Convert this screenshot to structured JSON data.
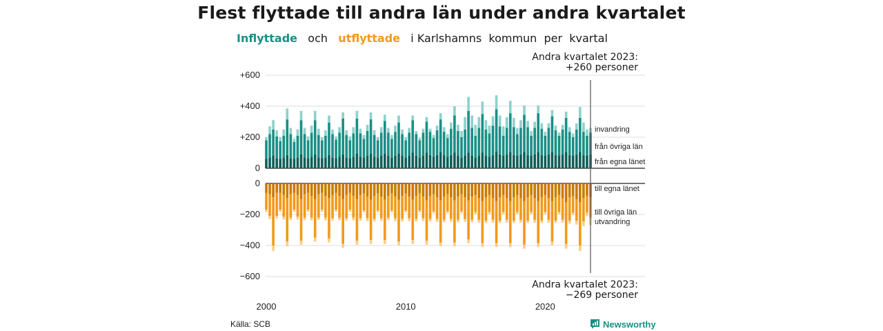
{
  "title": "Flest flyttade till andra län under andra kvartalet",
  "subtitle": {
    "in_label": "Inflyttade",
    "and_word": "och",
    "out_label": "utflyttade",
    "rest": "i Karlshamns  kommun  per  kvartal"
  },
  "annotations": {
    "top": "Andra kvartalet 2023:\n+260 personer",
    "bottom": "Andra kvartalet 2023:\n−269 personer"
  },
  "source": "Källa: SCB",
  "brand": {
    "name": "Newsworthy",
    "icon": "newsworthy-logo-icon"
  },
  "colors": {
    "in_own_county": "#0e5e58",
    "in_other_counties": "#1a8f86",
    "in_immigration": "#8fd1cb",
    "out_own_county": "#c97a00",
    "out_other_counties": "#f29a1a",
    "out_emigration": "#f8cf8a",
    "grid": "#dddddd",
    "marker": "#555555"
  },
  "chart_data": {
    "type": "bar",
    "stacked": true,
    "x_start": "2000 Q1",
    "x_end": "2023 Q2",
    "x_ticks": [
      "2000",
      "2010",
      "2020"
    ],
    "ylim": [
      -600,
      600
    ],
    "yticks": [
      "+600",
      "+400",
      "+200",
      "0",
      "−200",
      "−400",
      "−600"
    ],
    "grid": true,
    "series": [
      {
        "name": "från egna länet",
        "side": "in",
        "values": [
          60,
          70,
          80,
          65,
          60,
          70,
          85,
          65,
          60,
          70,
          90,
          70,
          65,
          75,
          90,
          70,
          65,
          70,
          85,
          70,
          65,
          75,
          90,
          70,
          65,
          75,
          95,
          75,
          70,
          80,
          95,
          75,
          70,
          80,
          95,
          80,
          70,
          80,
          95,
          80,
          70,
          80,
          100,
          80,
          70,
          80,
          100,
          85,
          75,
          85,
          105,
          85,
          75,
          85,
          100,
          80,
          70,
          80,
          100,
          80,
          70,
          80,
          100,
          80,
          75,
          85,
          110,
          90,
          80,
          90,
          105,
          85,
          80,
          90,
          105,
          85,
          80,
          90,
          105,
          85,
          80,
          90,
          105,
          85,
          80,
          90,
          105,
          85,
          80,
          90,
          105,
          85,
          80,
          90
        ]
      },
      {
        "name": "från övriga län",
        "side": "in",
        "values": [
          120,
          150,
          170,
          140,
          115,
          140,
          230,
          155,
          110,
          140,
          220,
          150,
          115,
          155,
          220,
          145,
          115,
          140,
          210,
          150,
          120,
          155,
          230,
          145,
          115,
          150,
          225,
          150,
          120,
          160,
          220,
          140,
          110,
          150,
          210,
          150,
          120,
          155,
          200,
          140,
          110,
          150,
          210,
          140,
          110,
          150,
          200,
          150,
          120,
          160,
          210,
          150,
          120,
          170,
          240,
          160,
          130,
          170,
          270,
          180,
          140,
          180,
          250,
          170,
          150,
          190,
          270,
          180,
          130,
          170,
          250,
          180,
          140,
          170,
          240,
          180,
          130,
          170,
          250,
          170,
          130,
          170,
          230,
          160,
          130,
          160,
          220,
          150,
          120,
          160,
          220,
          150,
          130,
          140
        ]
      },
      {
        "name": "invandring",
        "side": "in",
        "values": [
          20,
          50,
          60,
          40,
          25,
          40,
          70,
          40,
          20,
          40,
          60,
          40,
          25,
          45,
          60,
          40,
          20,
          35,
          45,
          30,
          20,
          35,
          40,
          30,
          25,
          40,
          50,
          30,
          25,
          40,
          45,
          30,
          20,
          35,
          40,
          30,
          25,
          40,
          45,
          30,
          20,
          30,
          30,
          20,
          15,
          25,
          30,
          20,
          20,
          30,
          40,
          30,
          25,
          40,
          60,
          40,
          40,
          80,
          90,
          80,
          70,
          70,
          80,
          60,
          50,
          60,
          90,
          70,
          60,
          70,
          80,
          60,
          40,
          50,
          60,
          40,
          30,
          40,
          50,
          35,
          25,
          30,
          40,
          30,
          20,
          30,
          40,
          30,
          25,
          40,
          70,
          60,
          40,
          30
        ]
      },
      {
        "name": "till egna länet",
        "side": "out",
        "values": [
          -60,
          -70,
          -90,
          -60,
          -60,
          -75,
          -95,
          -70,
          -60,
          -75,
          -100,
          -70,
          -60,
          -80,
          -100,
          -70,
          -60,
          -80,
          -95,
          -75,
          -60,
          -80,
          -100,
          -75,
          -60,
          -80,
          -100,
          -75,
          -65,
          -85,
          -105,
          -80,
          -65,
          -85,
          -105,
          -80,
          -65,
          -85,
          -105,
          -80,
          -65,
          -85,
          -105,
          -80,
          -65,
          -85,
          -110,
          -80,
          -70,
          -90,
          -110,
          -85,
          -70,
          -90,
          -110,
          -85,
          -70,
          -90,
          -110,
          -85,
          -75,
          -95,
          -115,
          -90,
          -75,
          -95,
          -115,
          -90,
          -75,
          -95,
          -115,
          -90,
          -75,
          -95,
          -115,
          -90,
          -75,
          -95,
          -115,
          -90,
          -75,
          -95,
          -115,
          -90,
          -75,
          -95,
          -120,
          -90,
          -80,
          -100,
          -120,
          -95,
          -80,
          -90
        ]
      },
      {
        "name": "till övriga län",
        "side": "out",
        "values": [
          -110,
          -140,
          -310,
          -150,
          -110,
          -140,
          -280,
          -150,
          -110,
          -140,
          -270,
          -150,
          -110,
          -140,
          -250,
          -150,
          -110,
          -140,
          -260,
          -150,
          -110,
          -140,
          -290,
          -150,
          -110,
          -140,
          -270,
          -150,
          -110,
          -140,
          -260,
          -150,
          -110,
          -140,
          -260,
          -140,
          -110,
          -140,
          -270,
          -150,
          -110,
          -140,
          -260,
          -150,
          -110,
          -140,
          -260,
          -150,
          -110,
          -140,
          -270,
          -150,
          -110,
          -140,
          -270,
          -150,
          -110,
          -140,
          -250,
          -150,
          -110,
          -140,
          -270,
          -150,
          -110,
          -140,
          -270,
          -150,
          -110,
          -140,
          -270,
          -150,
          -110,
          -140,
          -280,
          -150,
          -110,
          -140,
          -270,
          -150,
          -110,
          -140,
          -260,
          -150,
          -110,
          -140,
          -270,
          -150,
          -110,
          -140,
          -280,
          -150,
          -110,
          -130
        ]
      },
      {
        "name": "utvandring",
        "side": "out",
        "values": [
          -15,
          -20,
          -35,
          -15,
          -12,
          -18,
          -30,
          -15,
          -12,
          -18,
          -25,
          -15,
          -12,
          -18,
          -25,
          -15,
          -12,
          -18,
          -25,
          -15,
          -12,
          -18,
          -25,
          -15,
          -12,
          -18,
          -25,
          -15,
          -12,
          -18,
          -25,
          -15,
          -12,
          -18,
          -25,
          -15,
          -12,
          -18,
          -25,
          -15,
          -12,
          -18,
          -25,
          -15,
          -12,
          -18,
          -25,
          -15,
          -12,
          -18,
          -25,
          -15,
          -12,
          -18,
          -25,
          -15,
          -12,
          -18,
          -25,
          -15,
          -12,
          -18,
          -25,
          -15,
          -12,
          -18,
          -25,
          -15,
          -12,
          -18,
          -25,
          -15,
          -12,
          -18,
          -25,
          -15,
          -12,
          -18,
          -25,
          -15,
          -12,
          -18,
          -25,
          -15,
          -12,
          -18,
          -30,
          -20,
          -15,
          -25,
          -35,
          -30,
          -20,
          -49
        ]
      }
    ]
  }
}
